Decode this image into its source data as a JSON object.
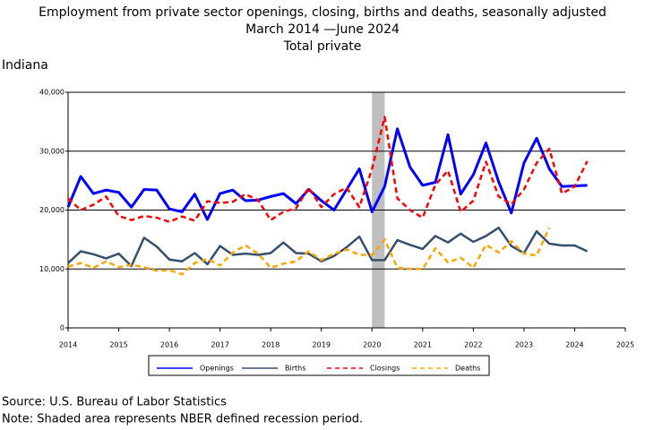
{
  "chart_data": {
    "type": "line",
    "title": "Employment from private sector openings, closing, births and deaths, seasonally adjusted",
    "subtitle": "March 2014 —June 2024",
    "subtitle2": "Total private",
    "region": "Indiana",
    "source": "Source: U.S. Bureau of Labor Statistics",
    "note": "Note: Shaded area represents NBER defined recession period.",
    "recession": [
      2020.0,
      2020.25
    ],
    "xlim": [
      2014,
      2025
    ],
    "xticks": [
      2014,
      2015,
      2016,
      2017,
      2018,
      2019,
      2020,
      2021,
      2022,
      2023,
      2024,
      2025
    ],
    "ylim": [
      0,
      40000
    ],
    "yticks": [
      0,
      {
        "value": 10000,
        "label": "10,000"
      },
      {
        "value": 20000,
        "label": "20,000"
      },
      {
        "value": 30000,
        "label": "30,000"
      },
      {
        "value": 40000,
        "label": "40,000"
      }
    ],
    "grid": true,
    "x": [
      2014,
      2014.25,
      2014.5,
      2014.75,
      2015,
      2015.25,
      2015.5,
      2015.75,
      2016,
      2016.25,
      2016.5,
      2016.75,
      2017,
      2017.25,
      2017.5,
      2017.75,
      2018,
      2018.25,
      2018.5,
      2018.75,
      2019,
      2019.25,
      2019.5,
      2019.75,
      2020,
      2020.25,
      2020.5,
      2020.75,
      2021,
      2021.25,
      2021.5,
      2021.75,
      2022,
      2022.25,
      2022.5,
      2022.75,
      2023,
      2023.25,
      2023.5,
      2023.75,
      2024,
      2024.25,
      2024.5
    ],
    "series": [
      {
        "name": "Openings",
        "color": "#0000ff",
        "dashed": false,
        "values": [
          20500,
          25700,
          22800,
          23400,
          23000,
          20500,
          23500,
          23400,
          20200,
          19700,
          22700,
          18400,
          22800,
          23400,
          21600,
          21700,
          22300,
          22800,
          21100,
          23500,
          21600,
          20000,
          23500,
          27000,
          19700,
          24000,
          33800,
          27300,
          24200,
          24700,
          32800,
          22700,
          26000,
          31400,
          24800,
          19500,
          28000,
          32200,
          27000,
          24000,
          24100,
          24200,
          null
        ]
      },
      {
        "name": "Births",
        "color": "#34506e",
        "dashed": false,
        "values": [
          11000,
          13000,
          12500,
          11800,
          12600,
          10500,
          15300,
          13800,
          11600,
          11300,
          12700,
          10800,
          13900,
          12400,
          12600,
          12400,
          12700,
          14500,
          12700,
          12600,
          11300,
          12200,
          13700,
          15500,
          11500,
          11500,
          14900,
          14100,
          13400,
          15600,
          14500,
          16000,
          14600,
          15600,
          17000,
          13900,
          12700,
          16400,
          14300,
          14000,
          14000,
          13000,
          null
        ]
      },
      {
        "name": "Closings",
        "color": "#ff0000",
        "dashed": true,
        "values": [
          22000,
          20000,
          20900,
          22300,
          19000,
          18300,
          19000,
          18700,
          18000,
          18900,
          18200,
          21500,
          21200,
          21400,
          22700,
          21700,
          18300,
          19700,
          20300,
          23800,
          20500,
          22700,
          23800,
          20500,
          27000,
          35800,
          22000,
          20000,
          18700,
          24300,
          26700,
          19700,
          21600,
          28200,
          22300,
          21000,
          23500,
          28000,
          30400,
          22800,
          24000,
          28300,
          null
        ]
      },
      {
        "name": "Deaths",
        "color": "#ffa500",
        "dashed": true,
        "values": [
          10400,
          11000,
          10200,
          11300,
          10300,
          10700,
          10300,
          9700,
          9800,
          9100,
          11000,
          11700,
          10600,
          12800,
          14000,
          12600,
          10200,
          10900,
          11300,
          13000,
          11500,
          12600,
          13300,
          12400,
          12400,
          15000,
          10200,
          10000,
          10000,
          13500,
          11100,
          11900,
          10200,
          14100,
          12800,
          14700,
          12600,
          12300,
          17000,
          null,
          null,
          null,
          null
        ]
      }
    ]
  }
}
